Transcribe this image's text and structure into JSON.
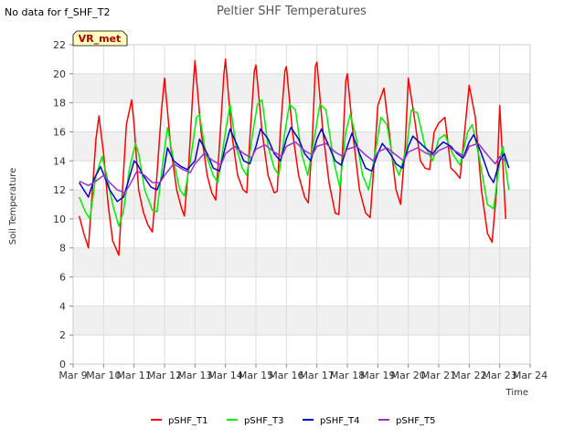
{
  "no_data_note": "No data for f_SHF_T2",
  "chart_data": {
    "type": "line",
    "title": "Peltier SHF Temperatures",
    "xlabel": "Time",
    "ylabel": "Soil Temperature",
    "ylim": [
      0,
      22
    ],
    "yticks": [
      0,
      2,
      4,
      6,
      8,
      10,
      12,
      14,
      16,
      18,
      20,
      22
    ],
    "xlim": [
      9,
      24
    ],
    "xticks": [
      9,
      10,
      11,
      12,
      13,
      14,
      15,
      16,
      17,
      18,
      19,
      20,
      21,
      22,
      23,
      24
    ],
    "xtick_labels": [
      "Mar 9",
      "Mar 10",
      "Mar 11",
      "Mar 12",
      "Mar 13",
      "Mar 14",
      "Mar 15",
      "Mar 16",
      "Mar 17",
      "Mar 18",
      "Mar 19",
      "Mar 20",
      "Mar 21",
      "Mar 22",
      "Mar 23",
      "Mar 24"
    ],
    "grid": true,
    "legend_position": "bottom",
    "badge": "VR_met",
    "colors": {
      "badge_bg": "#ffffc0",
      "badge_text": "#aa0000",
      "band": "#f0f0f0",
      "grid": "#dddddd"
    },
    "series": [
      {
        "name": "pSHF_T1",
        "color": "#ff0000",
        "x": [
          9.2,
          9.35,
          9.5,
          9.6,
          9.75,
          9.85,
          10.0,
          10.15,
          10.3,
          10.5,
          10.62,
          10.75,
          10.92,
          11.0,
          11.15,
          11.3,
          11.45,
          11.6,
          11.75,
          11.9,
          12.0,
          12.2,
          12.4,
          12.55,
          12.65,
          12.8,
          12.95,
          13.0,
          13.2,
          13.4,
          13.55,
          13.68,
          13.8,
          13.95,
          14.0,
          14.2,
          14.4,
          14.58,
          14.7,
          14.8,
          14.95,
          15.0,
          15.2,
          15.4,
          15.6,
          15.7,
          15.8,
          15.95,
          16.0,
          16.2,
          16.4,
          16.6,
          16.72,
          16.85,
          16.95,
          17.0,
          17.2,
          17.4,
          17.6,
          17.72,
          17.85,
          17.95,
          18.0,
          18.2,
          18.4,
          18.6,
          18.75,
          18.9,
          19.0,
          19.2,
          19.4,
          19.6,
          19.75,
          19.9,
          20.0,
          20.2,
          20.4,
          20.55,
          20.7,
          20.85,
          21.0,
          21.2,
          21.4,
          21.55,
          21.7,
          21.85,
          22.0,
          22.2,
          22.4,
          22.6,
          22.75,
          22.9,
          23.0,
          23.2
        ],
        "y": [
          10.2,
          9.0,
          8.0,
          11.0,
          15.5,
          17.1,
          14.5,
          11.0,
          8.5,
          7.5,
          12.0,
          16.5,
          18.2,
          16.5,
          12.0,
          10.5,
          9.6,
          9.1,
          13.0,
          17.5,
          19.7,
          15.0,
          12.0,
          10.8,
          10.2,
          14.0,
          19.5,
          20.9,
          16.0,
          13.0,
          11.8,
          11.3,
          15.0,
          20.0,
          21.0,
          16.0,
          13.0,
          12.0,
          11.8,
          15.5,
          20.2,
          20.6,
          16.0,
          13.0,
          11.8,
          11.9,
          16.0,
          20.2,
          20.5,
          16.0,
          13.0,
          11.5,
          11.1,
          15.5,
          20.5,
          20.8,
          16.0,
          12.5,
          10.4,
          10.3,
          15.0,
          19.5,
          20.0,
          15.5,
          12.0,
          10.4,
          10.1,
          14.5,
          17.8,
          19.0,
          15.5,
          12.0,
          11.0,
          15.0,
          19.7,
          17.0,
          14.0,
          13.5,
          13.4,
          16.0,
          16.6,
          17.0,
          13.5,
          13.2,
          12.8,
          16.0,
          19.2,
          17.0,
          12.0,
          9.0,
          8.4,
          12.0,
          17.8,
          10.0
        ]
      },
      {
        "name": "pSHF_T3",
        "color": "#00ee00",
        "x": [
          9.2,
          9.4,
          9.55,
          9.75,
          9.95,
          10.1,
          10.3,
          10.5,
          10.65,
          10.85,
          11.05,
          11.15,
          11.35,
          11.6,
          11.75,
          11.95,
          12.1,
          12.3,
          12.5,
          12.65,
          12.85,
          13.05,
          13.15,
          13.35,
          13.6,
          13.75,
          14.0,
          14.15,
          14.35,
          14.55,
          14.7,
          14.9,
          15.05,
          15.2,
          15.4,
          15.6,
          15.75,
          15.95,
          16.1,
          16.3,
          16.5,
          16.7,
          16.95,
          17.1,
          17.3,
          17.55,
          17.75,
          17.95,
          18.1,
          18.3,
          18.5,
          18.7,
          18.95,
          19.1,
          19.3,
          19.5,
          19.7,
          19.95,
          20.1,
          20.3,
          20.55,
          20.8,
          21.0,
          21.2,
          21.45,
          21.7,
          21.95,
          22.1,
          22.35,
          22.6,
          22.8,
          23.0,
          23.1,
          23.3
        ],
        "y": [
          11.5,
          10.5,
          10.0,
          13.0,
          14.3,
          13.0,
          11.0,
          9.5,
          10.5,
          13.5,
          15.2,
          14.5,
          12.0,
          10.6,
          10.5,
          14.0,
          16.3,
          14.0,
          12.0,
          11.6,
          14.0,
          17.0,
          17.2,
          14.5,
          13.0,
          12.5,
          16.0,
          17.9,
          15.0,
          13.5,
          13.0,
          16.0,
          17.9,
          18.2,
          15.0,
          13.5,
          13.0,
          16.0,
          17.9,
          17.5,
          14.5,
          13.0,
          16.0,
          17.9,
          17.5,
          14.0,
          12.2,
          16.0,
          17.2,
          15.5,
          13.0,
          12.0,
          15.0,
          17.0,
          16.5,
          14.0,
          13.0,
          15.0,
          17.5,
          17.3,
          15.0,
          14.0,
          15.5,
          15.8,
          14.5,
          13.7,
          16.0,
          16.5,
          14.0,
          11.0,
          10.7,
          14.0,
          15.0,
          12.0
        ]
      },
      {
        "name": "pSHF_T4",
        "color": "#0000cc",
        "x": [
          9.2,
          9.5,
          9.7,
          9.9,
          10.05,
          10.2,
          10.45,
          10.65,
          10.8,
          11.0,
          11.1,
          11.3,
          11.55,
          11.75,
          11.95,
          12.1,
          12.3,
          12.55,
          12.75,
          13.0,
          13.15,
          13.4,
          13.6,
          13.8,
          14.0,
          14.15,
          14.4,
          14.6,
          14.8,
          15.0,
          15.15,
          15.4,
          15.6,
          15.8,
          16.0,
          16.15,
          16.4,
          16.6,
          16.8,
          17.0,
          17.15,
          17.4,
          17.6,
          17.8,
          18.0,
          18.15,
          18.4,
          18.6,
          18.8,
          19.0,
          19.15,
          19.4,
          19.6,
          19.8,
          20.0,
          20.15,
          20.4,
          20.6,
          20.8,
          21.0,
          21.15,
          21.4,
          21.6,
          21.8,
          22.0,
          22.15,
          22.4,
          22.65,
          22.8,
          23.0,
          23.15,
          23.3
        ],
        "y": [
          12.5,
          11.5,
          12.8,
          13.6,
          12.8,
          12.0,
          11.2,
          11.5,
          12.5,
          14.0,
          13.8,
          13.0,
          12.2,
          12.0,
          13.0,
          14.9,
          14.0,
          13.6,
          13.4,
          14.0,
          15.5,
          14.5,
          13.5,
          13.3,
          15.0,
          16.2,
          15.0,
          14.0,
          13.8,
          15.0,
          16.2,
          15.5,
          14.5,
          14.0,
          15.5,
          16.3,
          15.5,
          14.5,
          14.0,
          15.5,
          16.2,
          15.0,
          14.0,
          13.7,
          15.0,
          15.9,
          14.5,
          13.5,
          13.3,
          14.5,
          15.2,
          14.5,
          13.8,
          13.5,
          15.0,
          15.7,
          15.2,
          14.8,
          14.5,
          15.0,
          15.3,
          15.0,
          14.5,
          14.2,
          15.3,
          15.8,
          14.5,
          13.0,
          12.5,
          14.0,
          14.5,
          13.5
        ]
      },
      {
        "name": "pSHF_T5",
        "color": "#9933cc",
        "x": [
          9.2,
          9.5,
          9.75,
          10.0,
          10.2,
          10.45,
          10.7,
          10.9,
          11.1,
          11.35,
          11.6,
          11.85,
          12.0,
          12.3,
          12.6,
          12.85,
          13.0,
          13.3,
          13.6,
          13.85,
          14.0,
          14.3,
          14.6,
          14.85,
          15.0,
          15.3,
          15.6,
          15.85,
          16.0,
          16.3,
          16.6,
          16.85,
          17.0,
          17.3,
          17.6,
          17.85,
          18.0,
          18.3,
          18.6,
          18.85,
          19.0,
          19.3,
          19.6,
          19.85,
          20.0,
          20.3,
          20.6,
          20.85,
          21.0,
          21.3,
          21.6,
          21.85,
          22.0,
          22.3,
          22.6,
          22.85,
          23.0,
          23.2
        ],
        "y": [
          12.6,
          12.3,
          12.6,
          13.0,
          12.5,
          12.0,
          11.8,
          12.5,
          13.3,
          13.0,
          12.5,
          12.5,
          13.0,
          13.8,
          13.4,
          13.2,
          13.8,
          14.5,
          14.0,
          13.7,
          14.5,
          15.0,
          14.5,
          14.2,
          14.8,
          15.1,
          14.6,
          14.3,
          15.0,
          15.3,
          14.7,
          14.4,
          15.0,
          15.2,
          14.6,
          14.3,
          14.8,
          15.0,
          14.4,
          14.0,
          14.6,
          14.9,
          14.4,
          14.0,
          14.6,
          14.9,
          14.5,
          14.4,
          14.7,
          15.0,
          14.6,
          14.3,
          15.0,
          15.2,
          14.4,
          13.8,
          14.3,
          14.0
        ]
      }
    ]
  }
}
